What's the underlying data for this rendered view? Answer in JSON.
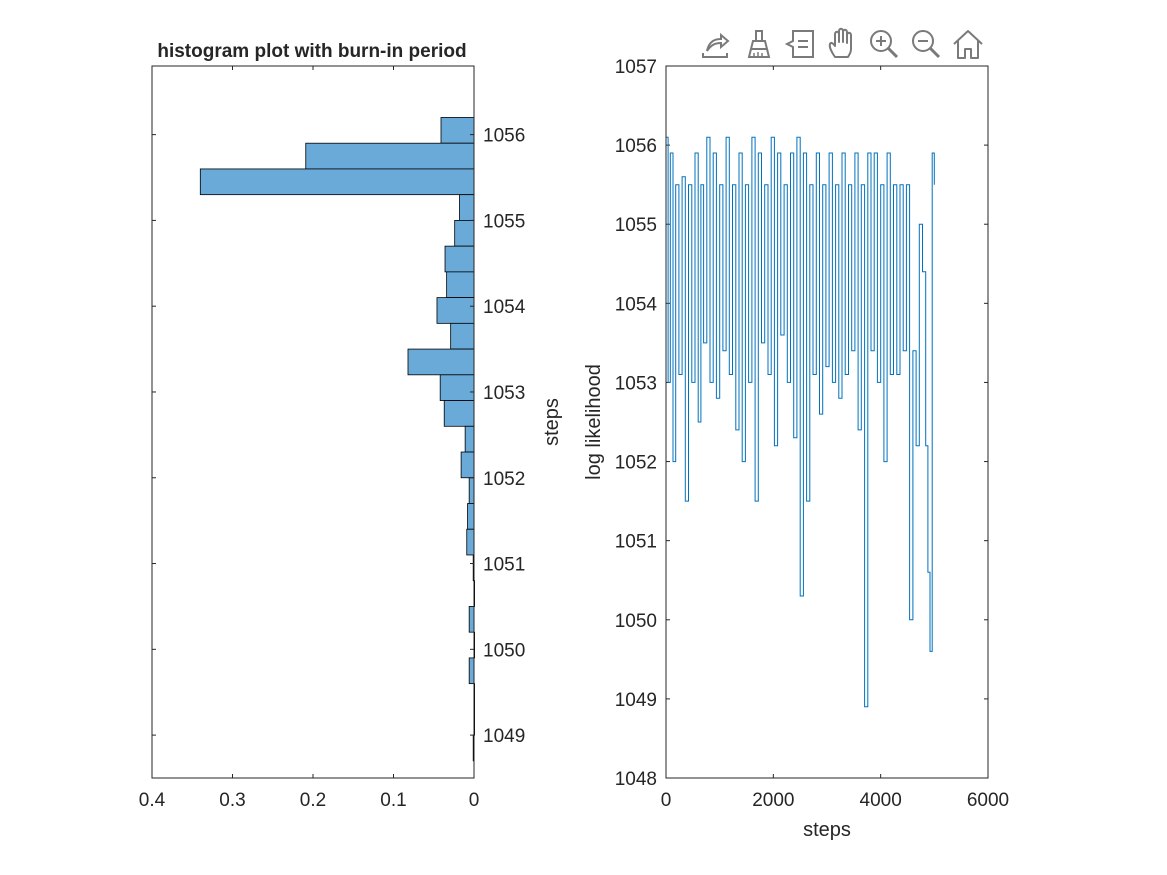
{
  "toolbar": {
    "icons": [
      "export-icon",
      "brush-icon",
      "datatip-icon",
      "pan-icon",
      "zoom-in-icon",
      "zoom-out-icon",
      "home-icon"
    ]
  },
  "chart_data": [
    {
      "type": "bar",
      "orientation": "horizontal",
      "title": "histogram plot with burn-in period",
      "xlabel": "",
      "ylabel": "steps",
      "x_direction": "reversed",
      "y_axis_location": "right",
      "xlim": [
        0,
        0.4
      ],
      "ylim": [
        1048.5,
        1056.8
      ],
      "xticks": [
        0.4,
        0.3,
        0.2,
        0.1,
        0
      ],
      "xtick_labels": [
        "0.4",
        "0.3",
        "0.2",
        "0.1",
        "0"
      ],
      "yticks": [
        1049,
        1050,
        1051,
        1052,
        1053,
        1054,
        1055,
        1056
      ],
      "ytick_labels": [
        "1049",
        "1050",
        "1051",
        "1052",
        "1053",
        "1054",
        "1055",
        "1056"
      ],
      "bin_width": 0.3,
      "bins": [
        {
          "low": 1055.9,
          "value": 0.041
        },
        {
          "low": 1055.6,
          "value": 0.209
        },
        {
          "low": 1055.3,
          "value": 0.34
        },
        {
          "low": 1055.0,
          "value": 0.018
        },
        {
          "low": 1054.7,
          "value": 0.024
        },
        {
          "low": 1054.4,
          "value": 0.036
        },
        {
          "low": 1054.1,
          "value": 0.034
        },
        {
          "low": 1053.8,
          "value": 0.046
        },
        {
          "low": 1053.5,
          "value": 0.029
        },
        {
          "low": 1053.2,
          "value": 0.082
        },
        {
          "low": 1052.9,
          "value": 0.042
        },
        {
          "low": 1052.6,
          "value": 0.037
        },
        {
          "low": 1052.3,
          "value": 0.011
        },
        {
          "low": 1052.0,
          "value": 0.016
        },
        {
          "low": 1051.7,
          "value": 0.006
        },
        {
          "low": 1051.4,
          "value": 0.008
        },
        {
          "low": 1051.1,
          "value": 0.009
        },
        {
          "low": 1050.8,
          "value": 0.001
        },
        {
          "low": 1050.5,
          "value": 0.0
        },
        {
          "low": 1050.2,
          "value": 0.006
        },
        {
          "low": 1049.9,
          "value": 0.0
        },
        {
          "low": 1049.6,
          "value": 0.006
        },
        {
          "low": 1049.3,
          "value": 0.0
        },
        {
          "low": 1049.0,
          "value": 0.0
        },
        {
          "low": 1048.7,
          "value": 0.001
        }
      ],
      "bar_color": "#6aaad8",
      "edge_color": "#000000"
    },
    {
      "type": "line",
      "title": "",
      "xlabel": "steps",
      "ylabel": "log likelihood",
      "xlim": [
        0,
        6000
      ],
      "ylim": [
        1048,
        1057
      ],
      "xticks": [
        0,
        2000,
        4000,
        6000
      ],
      "xtick_labels": [
        "0",
        "2000",
        "4000",
        "6000"
      ],
      "yticks": [
        1048,
        1049,
        1050,
        1051,
        1052,
        1053,
        1054,
        1055,
        1056,
        1057
      ],
      "ytick_labels": [
        "1048",
        "1049",
        "1050",
        "1051",
        "1052",
        "1053",
        "1054",
        "1055",
        "1056",
        "1057"
      ],
      "color": "#0072bd",
      "x": [
        0,
        40,
        80,
        130,
        180,
        240,
        300,
        360,
        420,
        480,
        540,
        600,
        650,
        700,
        760,
        820,
        880,
        940,
        1000,
        1060,
        1120,
        1180,
        1240,
        1300,
        1360,
        1420,
        1480,
        1540,
        1600,
        1660,
        1720,
        1780,
        1840,
        1900,
        1960,
        2020,
        2080,
        2140,
        2200,
        2260,
        2320,
        2380,
        2440,
        2500,
        2560,
        2620,
        2680,
        2740,
        2800,
        2860,
        2920,
        2980,
        3040,
        3100,
        3160,
        3220,
        3280,
        3340,
        3400,
        3460,
        3520,
        3580,
        3640,
        3700,
        3760,
        3820,
        3880,
        3940,
        4000,
        4060,
        4120,
        4180,
        4240,
        4300,
        4360,
        4420,
        4480,
        4540,
        4600,
        4660,
        4720,
        4780,
        4840,
        4880,
        4920,
        4960,
        5000
      ],
      "y": [
        1056.1,
        1053.0,
        1055.9,
        1052.0,
        1055.5,
        1053.1,
        1055.6,
        1051.5,
        1055.5,
        1053.0,
        1055.9,
        1052.5,
        1055.5,
        1053.5,
        1056.1,
        1053.0,
        1055.9,
        1052.8,
        1055.5,
        1053.4,
        1056.1,
        1053.1,
        1055.5,
        1052.4,
        1055.9,
        1052.0,
        1055.5,
        1053.0,
        1056.1,
        1051.5,
        1055.9,
        1053.5,
        1055.5,
        1053.1,
        1056.1,
        1052.2,
        1055.9,
        1053.6,
        1055.5,
        1053.0,
        1055.9,
        1052.3,
        1056.1,
        1050.3,
        1055.9,
        1051.5,
        1055.5,
        1053.1,
        1055.9,
        1052.6,
        1055.5,
        1053.2,
        1055.9,
        1053.0,
        1055.5,
        1052.8,
        1055.9,
        1053.1,
        1055.5,
        1053.4,
        1055.9,
        1052.4,
        1055.5,
        1048.9,
        1055.9,
        1053.4,
        1055.9,
        1053.0,
        1055.5,
        1052.0,
        1055.9,
        1053.1,
        1055.5,
        1053.1,
        1055.5,
        1053.4,
        1055.5,
        1050.0,
        1053.4,
        1052.2,
        1055.0,
        1054.4,
        1052.2,
        1050.6,
        1049.6,
        1055.9,
        1055.5
      ]
    }
  ]
}
